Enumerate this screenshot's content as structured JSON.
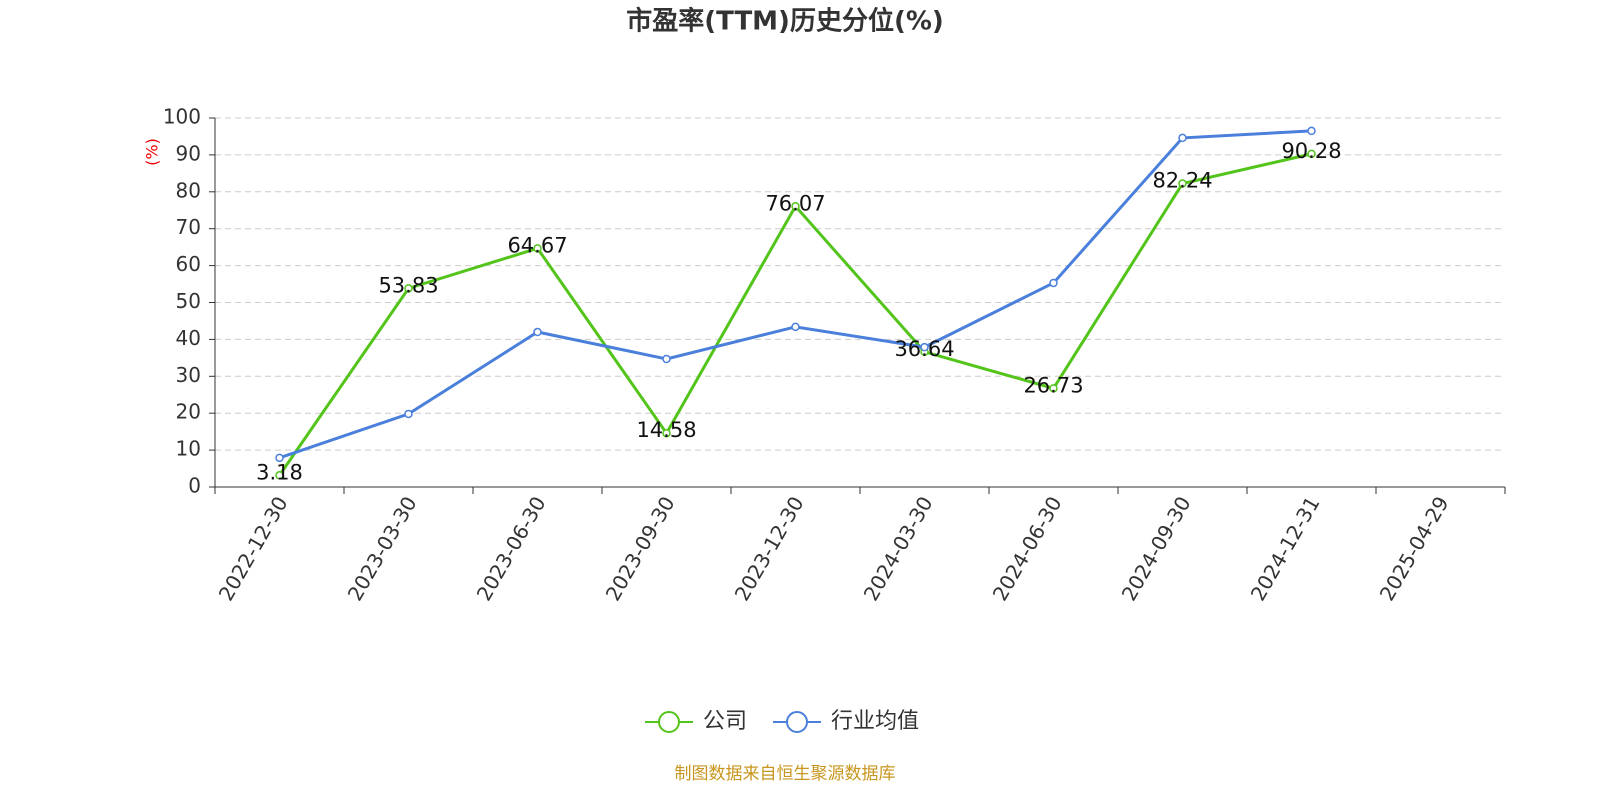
{
  "chart_data": {
    "type": "line",
    "title": "市盈率(TTM)历史分位(%)",
    "y_label": "(%)",
    "categories": [
      "2022-12-30",
      "2023-03-30",
      "2023-06-30",
      "2023-09-30",
      "2023-12-30",
      "2024-03-30",
      "2024-06-30",
      "2024-09-30",
      "2024-12-31",
      "2025-04-29"
    ],
    "series": [
      {
        "name": "公司",
        "color": "#52c41a",
        "values": [
          3.18,
          53.83,
          64.67,
          14.58,
          76.07,
          36.64,
          26.73,
          82.24,
          90.28,
          null
        ],
        "show_labels": true
      },
      {
        "name": "行业均值",
        "color": "#4a7fdc",
        "values": [
          7.9,
          19.8,
          42,
          34.7,
          43.4,
          37.9,
          55.3,
          94.6,
          96.5,
          null
        ],
        "show_labels": false
      }
    ],
    "ylim": [
      0,
      100
    ],
    "yticks": [
      0,
      10,
      20,
      30,
      40,
      50,
      60,
      70,
      80,
      90,
      100
    ],
    "grid": true,
    "source": "制图数据来自恒生聚源数据库"
  }
}
